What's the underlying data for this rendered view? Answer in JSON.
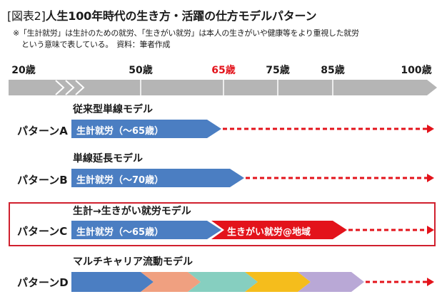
{
  "header": {
    "tag": "[図表2]",
    "title": "人生100年時代の生き方・活躍の仕方モデルパターン",
    "note_line1": "※「生計就労」は生計のための就労、「生きがい就労」は本人の生きがいや健康等をより重視した就労",
    "note_line2": "という意味で表している。　資料：筆者作成"
  },
  "timeline": {
    "ages": [
      "20歳",
      "50歳",
      "65歳",
      "75歳",
      "85歳",
      "100歳"
    ],
    "highlight_age": "65歳"
  },
  "patterns": [
    {
      "label": "パターンA",
      "model": "従来型単線モデル",
      "segment": "生計就労（～65歳）"
    },
    {
      "label": "パターンB",
      "model": "単線延長モデル",
      "segment": "生計就労（～70歳）"
    },
    {
      "label": "パターンC",
      "model": "生計→生きがい就労モデル",
      "segment": "生計就労（～65歳）",
      "segment2": "生きがい就労@地域"
    },
    {
      "label": "パターンD",
      "model": "マルチキャリア流動モデル"
    }
  ],
  "colors": {
    "blue": "#4b7ec2",
    "red": "#e3131b",
    "gray": "#b5b5b5",
    "salmon": "#f0a080",
    "teal": "#86cfc0",
    "yellow": "#f5bd1c",
    "lavender": "#b9a8d6",
    "highlight": "#d0202e"
  }
}
